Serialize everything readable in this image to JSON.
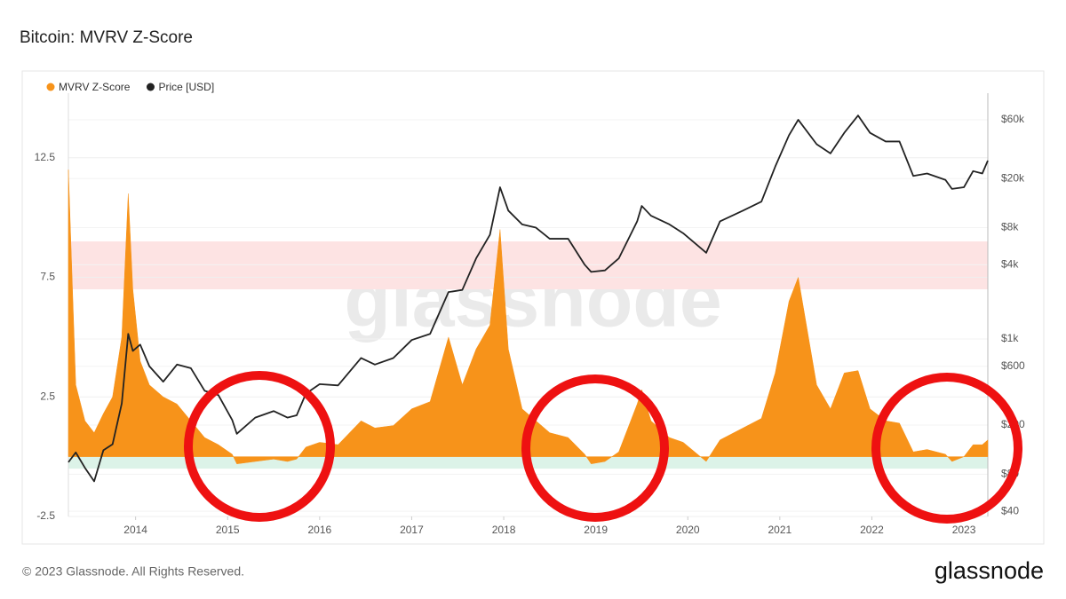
{
  "chart_data": {
    "type": "area",
    "title": "Bitcoin: MVRV Z-Score",
    "watermark": "glassnode",
    "legend": "top-left",
    "grid": true,
    "y2log": true,
    "x": [
      2013.27,
      2013.35,
      2013.45,
      2013.55,
      2013.65,
      2013.75,
      2013.85,
      2013.92,
      2013.97,
      2014.05,
      2014.15,
      2014.3,
      2014.45,
      2014.6,
      2014.75,
      2014.9,
      2015.05,
      2015.1,
      2015.3,
      2015.5,
      2015.65,
      2015.75,
      2015.85,
      2016.0,
      2016.2,
      2016.45,
      2016.6,
      2016.8,
      2017.0,
      2017.2,
      2017.4,
      2017.55,
      2017.7,
      2017.85,
      2017.96,
      2018.05,
      2018.2,
      2018.35,
      2018.5,
      2018.7,
      2018.88,
      2018.95,
      2019.1,
      2019.25,
      2019.45,
      2019.5,
      2019.6,
      2019.8,
      2019.95,
      2020.2,
      2020.35,
      2020.6,
      2020.8,
      2020.95,
      2021.1,
      2021.2,
      2021.4,
      2021.55,
      2021.7,
      2021.85,
      2021.98,
      2022.15,
      2022.3,
      2022.45,
      2022.6,
      2022.8,
      2022.87,
      2023.0,
      2023.1,
      2023.2,
      2023.26
    ],
    "series": [
      {
        "name": "MVRV Z-Score",
        "color": "#f7931a",
        "type": "area",
        "values": [
          12,
          3,
          1.5,
          1.0,
          1.8,
          2.5,
          5,
          11,
          7,
          4,
          3,
          2.5,
          2.2,
          1.5,
          0.8,
          0.5,
          0.1,
          -0.3,
          -0.2,
          -0.1,
          -0.2,
          -0.1,
          0.4,
          0.6,
          0.5,
          1.5,
          1.2,
          1.3,
          2.0,
          2.3,
          5,
          3,
          4.5,
          5.5,
          9.5,
          4.5,
          2.0,
          1.5,
          1.0,
          0.8,
          0.1,
          -0.3,
          -0.2,
          0.2,
          2.2,
          2.8,
          1.5,
          0.8,
          0.6,
          -0.2,
          0.7,
          1.2,
          1.6,
          3.5,
          6.5,
          7.5,
          3.0,
          2.0,
          3.5,
          3.6,
          2.0,
          1.5,
          1.4,
          0.2,
          0.3,
          0.1,
          -0.2,
          0.0,
          0.5,
          0.5,
          0.7
        ]
      },
      {
        "name": "Price [USD]",
        "color": "#222222",
        "type": "line",
        "axis": "y2",
        "values": [
          100,
          120,
          90,
          70,
          125,
          140,
          300,
          1100,
          800,
          900,
          600,
          450,
          620,
          580,
          380,
          350,
          220,
          170,
          230,
          260,
          230,
          240,
          360,
          430,
          420,
          700,
          620,
          700,
          980,
          1100,
          2400,
          2500,
          4500,
          7000,
          17000,
          11000,
          8500,
          8000,
          6500,
          6500,
          4000,
          3500,
          3600,
          4500,
          9000,
          12000,
          10000,
          8500,
          7200,
          5000,
          9000,
          11000,
          13000,
          25000,
          45000,
          60000,
          38000,
          32000,
          47000,
          65000,
          47000,
          40000,
          40000,
          21000,
          22000,
          19500,
          16500,
          17000,
          23000,
          22000,
          28000
        ]
      }
    ],
    "bands": [
      {
        "from": 7,
        "to": 9,
        "color": "#fde3e3"
      },
      {
        "from": -0.5,
        "to": 0,
        "color": "#dcf3e8"
      }
    ],
    "xlim": [
      2013.27,
      2023.26
    ],
    "xticks": [
      2014,
      2015,
      2016,
      2017,
      2018,
      2019,
      2020,
      2021,
      2022,
      2023
    ],
    "ylim": [
      -2.5,
      15.2
    ],
    "yticks": [
      -2.5,
      2.5,
      7.5,
      12.5
    ],
    "y2lim": [
      36.3,
      98600
    ],
    "y2ticks": [
      {
        "value": 40,
        "label": "$40"
      },
      {
        "value": 80,
        "label": "$80"
      },
      {
        "value": 200,
        "label": "$200"
      },
      {
        "value": 600,
        "label": "$600"
      },
      {
        "value": 1000,
        "label": "$1k"
      },
      {
        "value": 4000,
        "label": "$4k"
      },
      {
        "value": 8000,
        "label": "$8k"
      },
      {
        "value": 20000,
        "label": "$20k"
      },
      {
        "value": 60000,
        "label": "$60k"
      }
    ]
  },
  "footer": {
    "copyright": "© 2023 Glassnode. All Rights Reserved.",
    "logo": "glassnode"
  }
}
